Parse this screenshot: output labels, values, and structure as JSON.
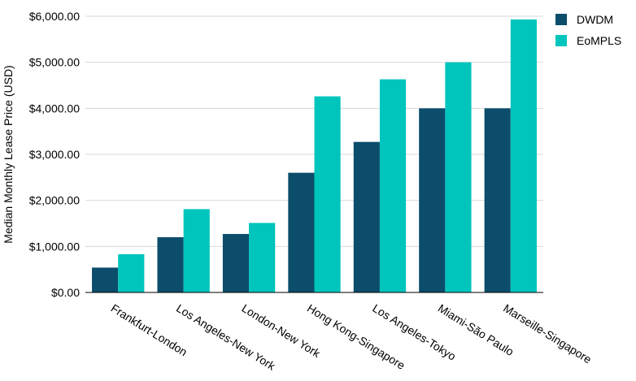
{
  "chart_data": {
    "type": "bar",
    "ylabel": "Median Monthly Lease Price (USD)",
    "ylim": [
      0,
      6000
    ],
    "yticks": [
      0,
      1000,
      2000,
      3000,
      4000,
      5000,
      6000
    ],
    "ytick_labels": [
      "$0.00",
      "$1,000.00",
      "$2,000.00",
      "$3,000.00",
      "$4,000.00",
      "$5,000.00",
      "$6,000.00"
    ],
    "grid": "horizontal",
    "legend_position": "top-right",
    "categories": [
      "Frankfurt-London",
      "Los Angeles-New York",
      "London-New York",
      "Hong Kong-Singapore",
      "Los Angeles-Tokyo",
      "Miami-São Paulo",
      "Marseille-Singapore"
    ],
    "series": [
      {
        "name": "DWDM",
        "color": "#0b4d6b",
        "values": [
          540,
          1200,
          1270,
          2600,
          3270,
          4000,
          4000
        ]
      },
      {
        "name": "EoMPLS",
        "color": "#00c5bd",
        "values": [
          830,
          1810,
          1510,
          4260,
          4630,
          5000,
          5930
        ]
      }
    ]
  }
}
